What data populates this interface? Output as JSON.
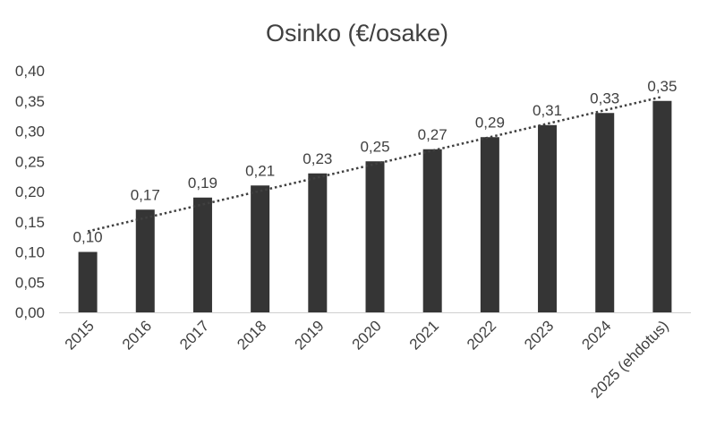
{
  "chart_data": {
    "type": "bar",
    "title": "Osinko (€/osake)",
    "xlabel": "",
    "ylabel": "",
    "categories": [
      "2015",
      "2016",
      "2017",
      "2018",
      "2019",
      "2020",
      "2021",
      "2022",
      "2023",
      "2024",
      "2025 (ehdotus)"
    ],
    "values": [
      0.1,
      0.17,
      0.19,
      0.21,
      0.23,
      0.25,
      0.27,
      0.29,
      0.31,
      0.33,
      0.35
    ],
    "data_labels": [
      "0,10",
      "0,17",
      "0,19",
      "0,21",
      "0,23",
      "0,25",
      "0,27",
      "0,29",
      "0,31",
      "0,33",
      "0,35"
    ],
    "y_ticks": [
      "0,00",
      "0,05",
      "0,10",
      "0,15",
      "0,20",
      "0,25",
      "0,30",
      "0,35",
      "0,40"
    ],
    "ylim": [
      0,
      0.4
    ],
    "grid": false,
    "trendline": "linear, dotted",
    "colors": {
      "bar": "#353535",
      "trend": "#404040",
      "text": "#404040",
      "axis": "#d0d0d0"
    }
  }
}
